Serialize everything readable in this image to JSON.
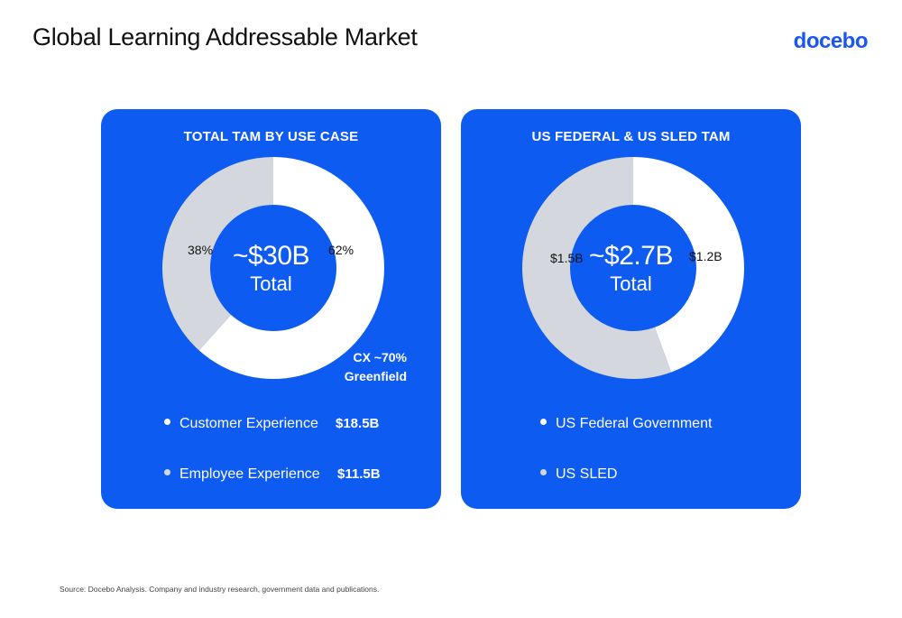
{
  "header": {
    "title": "Global Learning Addressable Market",
    "logo": "docebo"
  },
  "colors": {
    "card_bg": "#0e5bf2",
    "slice_primary": "#ffffff",
    "slice_secondary": "#d4d8de",
    "logo": "#1a56f0"
  },
  "chart_data": [
    {
      "type": "pie",
      "title": "TOTAL TAM BY USE CASE",
      "center_value": "~$30B",
      "center_label": "Total",
      "categories": [
        "Customer Experience",
        "Employee Experience"
      ],
      "values": [
        18.5,
        11.5
      ],
      "value_labels": [
        "$18.5B",
        "$11.5B"
      ],
      "slice_labels": [
        "62%",
        "38%"
      ],
      "annotation_line1": "CX ~70%",
      "annotation_line2": "Greenfield"
    },
    {
      "type": "pie",
      "title": "US FEDERAL & US SLED TAM",
      "center_value": "~$2.7B",
      "center_label": "Total",
      "categories": [
        "US Federal Government",
        "US SLED"
      ],
      "values": [
        1.2,
        1.5
      ],
      "slice_labels": [
        "$1.2B",
        "$1.5B"
      ]
    }
  ],
  "footer": {
    "source": "Source: Docebo Analysis. Company and industry research, government data and publications."
  }
}
